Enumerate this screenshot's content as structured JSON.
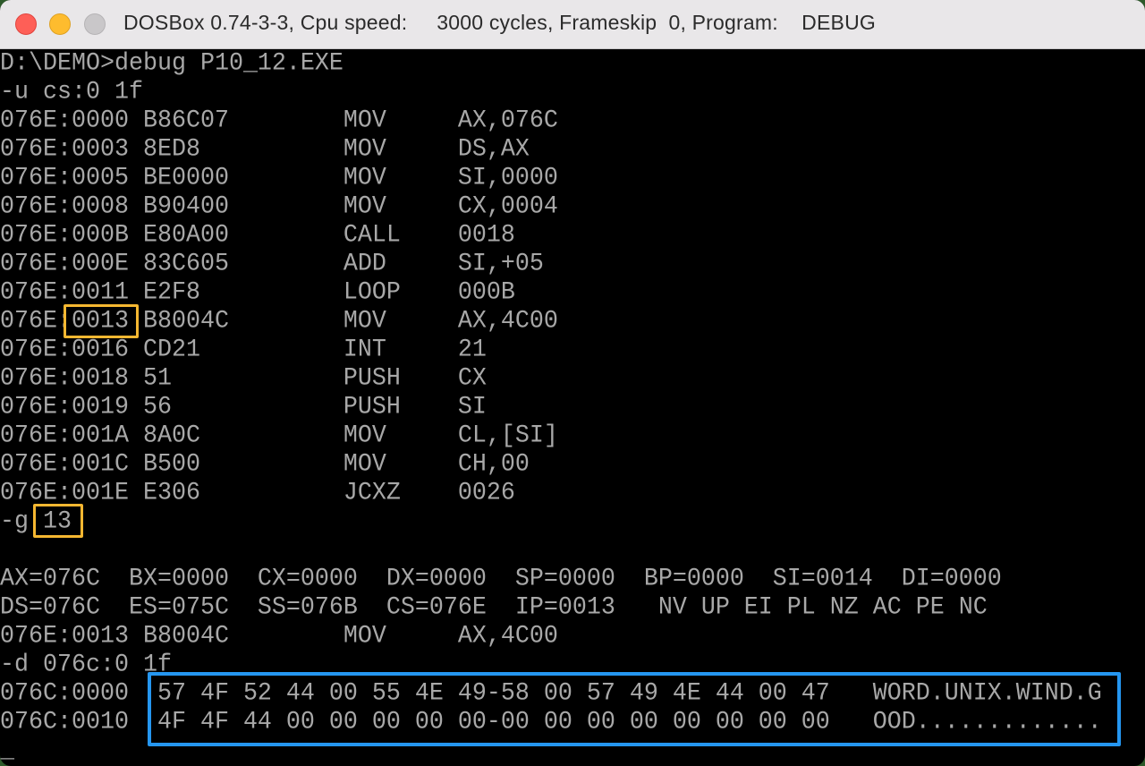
{
  "window": {
    "title": "DOSBox 0.74-3-3, Cpu speed:     3000 cycles, Frameskip  0, Program:    DEBUG",
    "controls": [
      "close",
      "minimize",
      "zoom"
    ]
  },
  "terminal": {
    "lines": [
      "D:\\DEMO>debug P10_12.EXE",
      "-u cs:0 1f",
      "076E:0000 B86C07        MOV     AX,076C",
      "076E:0003 8ED8          MOV     DS,AX",
      "076E:0005 BE0000        MOV     SI,0000",
      "076E:0008 B90400        MOV     CX,0004",
      "076E:000B E80A00        CALL    0018",
      "076E:000E 83C605        ADD     SI,+05",
      "076E:0011 E2F8          LOOP    000B",
      "076E:0013 B8004C        MOV     AX,4C00",
      "076E:0016 CD21          INT     21",
      "076E:0018 51            PUSH    CX",
      "076E:0019 56            PUSH    SI",
      "076E:001A 8A0C          MOV     CL,[SI]",
      "076E:001C B500          MOV     CH,00",
      "076E:001E E306          JCXZ    0026",
      "-g 13",
      "",
      "AX=076C  BX=0000  CX=0000  DX=0000  SP=0000  BP=0000  SI=0014  DI=0000",
      "DS=076C  ES=075C  SS=076B  CS=076E  IP=0013   NV UP EI PL NZ AC PE NC",
      "076E:0013 B8004C        MOV     AX,4C00",
      "-d 076c:0 1f",
      "076C:0000  57 4F 52 44 00 55 4E 49-58 00 57 49 4E 44 00 47   WORD.UNIX.WIND.G",
      "076C:0010  4F 4F 44 00 00 00 00 00-00 00 00 00 00 00 00 00   OOD.............",
      "_"
    ]
  },
  "highlights": {
    "offset_color": "#f5b731",
    "dump_color": "#2596f0"
  }
}
